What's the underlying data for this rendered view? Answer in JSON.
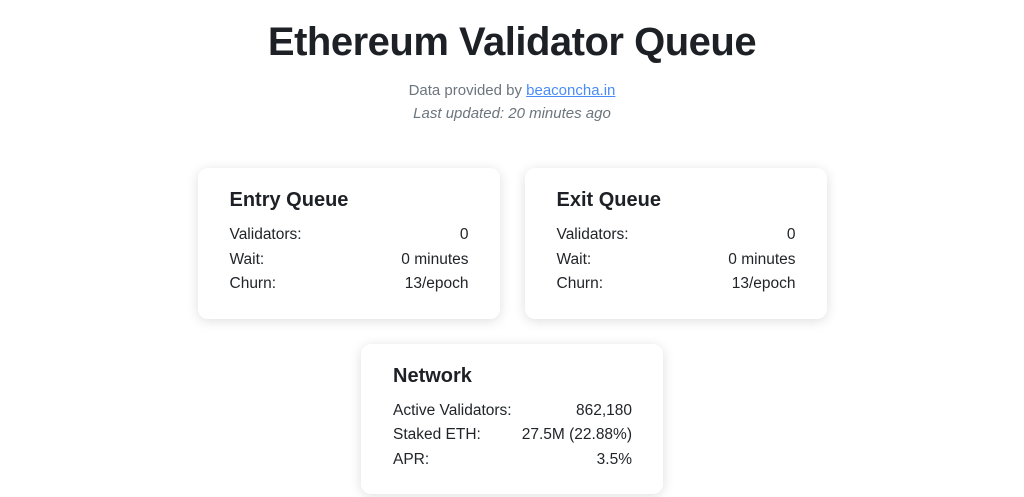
{
  "page": {
    "title": "Ethereum Validator Queue",
    "subtitle_prefix": "Data provided by ",
    "subtitle_link": "beaconcha.in",
    "last_updated": "Last updated: 20 minutes ago"
  },
  "cards": {
    "entry": {
      "title": "Entry Queue",
      "rows": [
        {
          "label": "Validators:",
          "value": "0"
        },
        {
          "label": "Wait:",
          "value": "0 minutes"
        },
        {
          "label": "Churn:",
          "value": "13/epoch"
        }
      ]
    },
    "exit": {
      "title": "Exit Queue",
      "rows": [
        {
          "label": "Validators:",
          "value": "0"
        },
        {
          "label": "Wait:",
          "value": "0 minutes"
        },
        {
          "label": "Churn:",
          "value": "13/epoch"
        }
      ]
    },
    "network": {
      "title": "Network",
      "rows": [
        {
          "label": "Active Validators:",
          "value": "862,180"
        },
        {
          "label": "Staked ETH:",
          "value": "27.5M (22.88%)"
        },
        {
          "label": "APR:",
          "value": "3.5%"
        }
      ]
    }
  },
  "colors": {
    "link": "#4a8cf7",
    "text": "#212529",
    "muted": "#6c757d"
  }
}
